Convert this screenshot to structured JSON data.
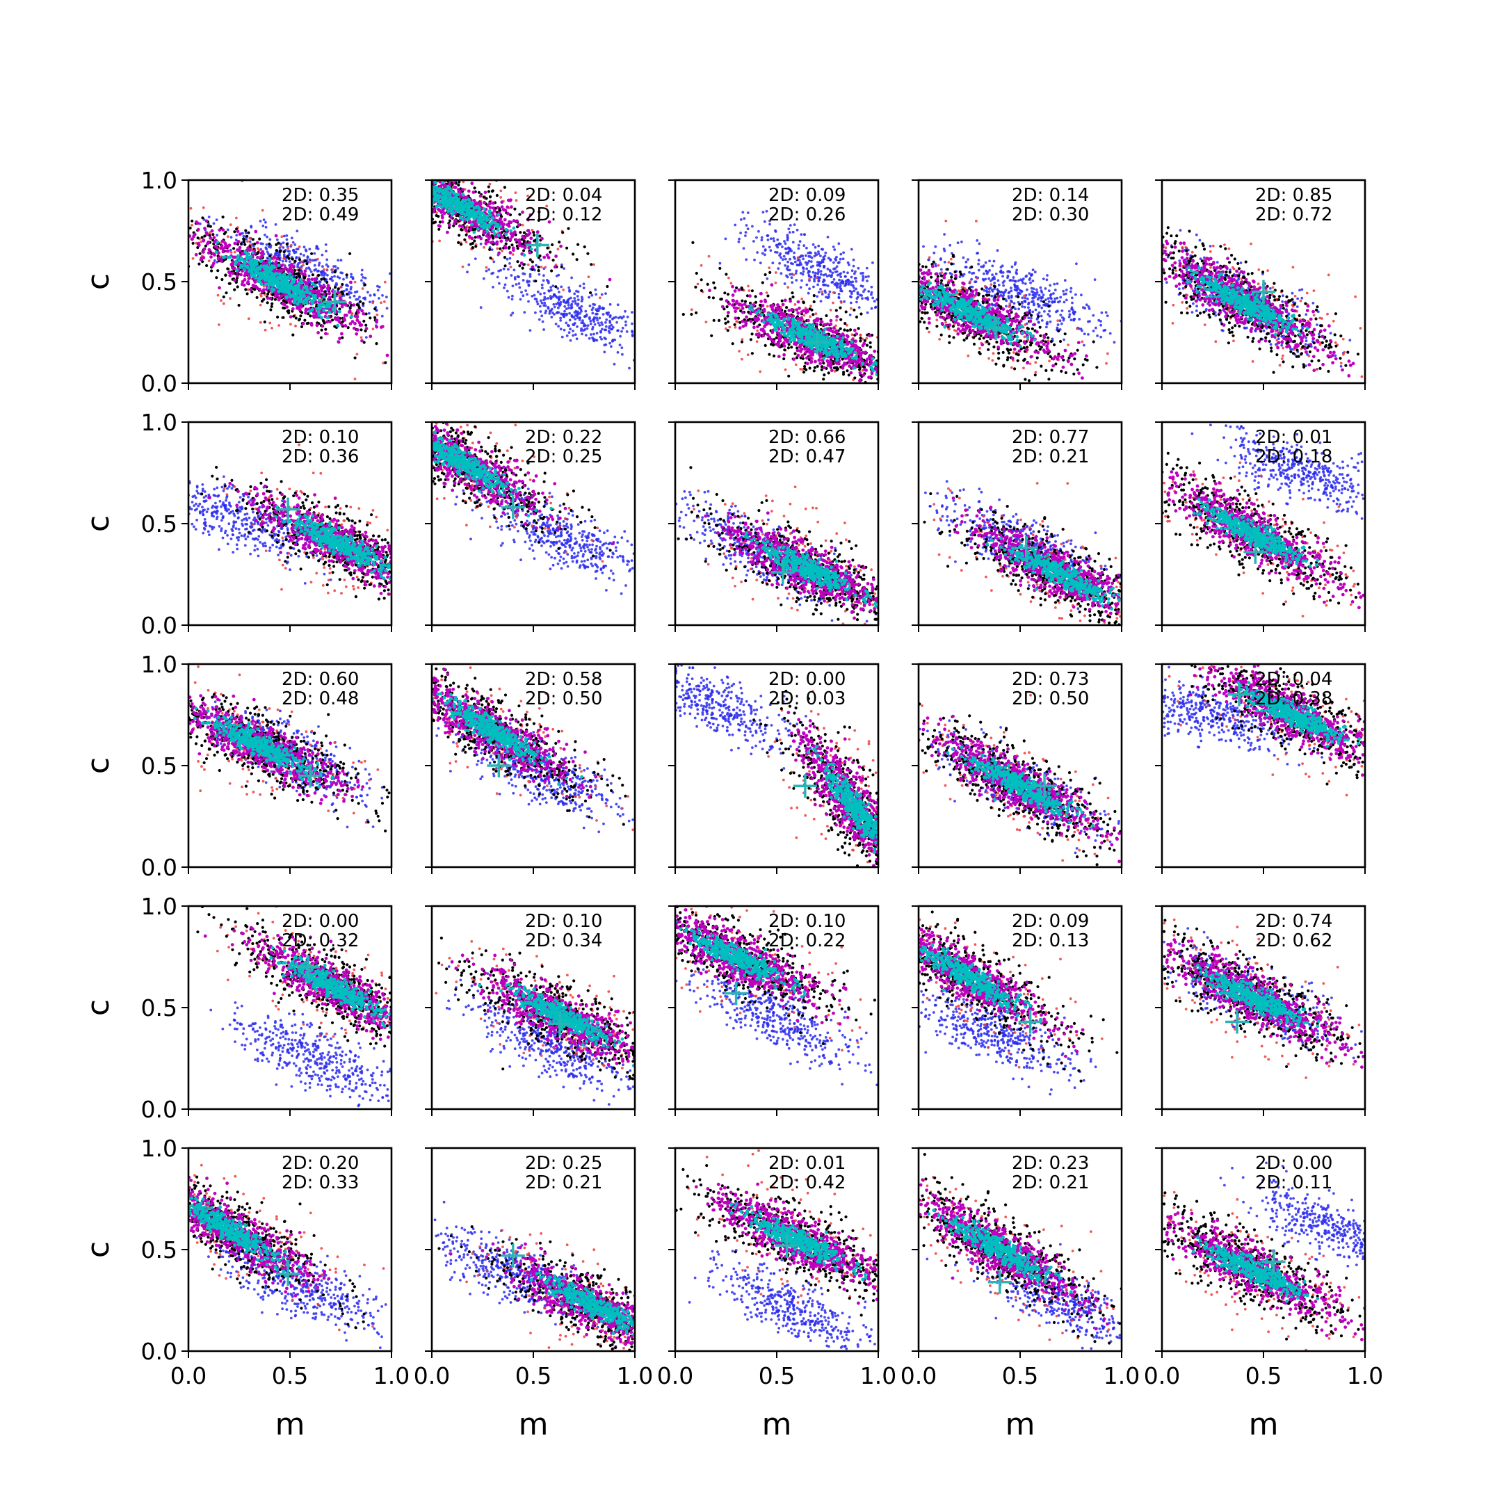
{
  "figure": {
    "rows": 5,
    "cols": 5
  },
  "chart_data": {
    "type": "scatter",
    "xlabel": "m",
    "ylabel": "c",
    "xlim": [
      0,
      1
    ],
    "ylim": [
      0,
      1
    ],
    "xticks": [
      "0.0",
      "0.5",
      "1.0"
    ],
    "yticks": [
      "0.0",
      "0.5",
      "1.0"
    ],
    "grid": false,
    "colors": {
      "blue": "#2a2af0",
      "red": "#ee3b3b",
      "black": "#000000",
      "magenta": "#bf00bf",
      "cyan": "#00bfbf",
      "marker": "#2ab5b5"
    },
    "panels": [
      {
        "annot": [
          "2D: 0.35",
          "2D: 0.49"
        ],
        "marker": [
          0.72,
          0.4
        ],
        "main": {
          "cx": 0.45,
          "cy": 0.5,
          "slope": -0.55
        },
        "blue": {
          "cx": 0.58,
          "cy": 0.55,
          "slope": -0.5
        }
      },
      {
        "annot": [
          "2D: 0.04",
          "2D: 0.12"
        ],
        "marker": [
          0.52,
          0.68
        ],
        "main": {
          "cx": 0.12,
          "cy": 0.88,
          "slope": -0.55
        },
        "blue": {
          "cx": 0.7,
          "cy": 0.35,
          "slope": -0.5
        }
      },
      {
        "annot": [
          "2D: 0.09",
          "2D: 0.26"
        ],
        "marker": [
          0.7,
          0.2
        ],
        "main": {
          "cx": 0.68,
          "cy": 0.22,
          "slope": -0.45
        },
        "blue": {
          "cx": 0.75,
          "cy": 0.55,
          "slope": -0.45
        }
      },
      {
        "annot": [
          "2D: 0.14",
          "2D: 0.30"
        ],
        "marker": [
          0.38,
          0.27
        ],
        "main": {
          "cx": 0.25,
          "cy": 0.35,
          "slope": -0.5
        },
        "blue": {
          "cx": 0.5,
          "cy": 0.44,
          "slope": -0.45
        }
      },
      {
        "annot": [
          "2D: 0.85",
          "2D: 0.72"
        ],
        "marker": [
          0.5,
          0.45
        ],
        "main": {
          "cx": 0.4,
          "cy": 0.4,
          "slope": -0.55
        },
        "blue": {
          "cx": 0.4,
          "cy": 0.4,
          "slope": -0.55
        }
      },
      {
        "annot": [
          "2D: 0.10",
          "2D: 0.36"
        ],
        "marker": [
          0.49,
          0.57
        ],
        "main": {
          "cx": 0.75,
          "cy": 0.4,
          "slope": -0.5
        },
        "blue": {
          "cx": 0.25,
          "cy": 0.52,
          "slope": -0.35
        }
      },
      {
        "annot": [
          "2D: 0.22",
          "2D: 0.25"
        ],
        "marker": [
          0.4,
          0.58
        ],
        "main": {
          "cx": 0.15,
          "cy": 0.8,
          "slope": -0.6
        },
        "blue": {
          "cx": 0.65,
          "cy": 0.42,
          "slope": -0.45
        }
      },
      {
        "annot": [
          "2D: 0.66",
          "2D: 0.47"
        ],
        "marker": [
          0.53,
          0.26
        ],
        "main": {
          "cx": 0.65,
          "cy": 0.28,
          "slope": -0.5
        },
        "blue": {
          "cx": 0.45,
          "cy": 0.35,
          "slope": -0.5
        }
      },
      {
        "annot": [
          "2D: 0.77",
          "2D: 0.21"
        ],
        "marker": [
          0.53,
          0.38
        ],
        "main": {
          "cx": 0.7,
          "cy": 0.25,
          "slope": -0.5
        },
        "blue": {
          "cx": 0.5,
          "cy": 0.4,
          "slope": -0.5
        }
      },
      {
        "annot": [
          "2D: 0.01",
          "2D: 0.18"
        ],
        "marker": [
          0.46,
          0.36
        ],
        "main": {
          "cx": 0.45,
          "cy": 0.45,
          "slope": -0.55
        },
        "blue": {
          "cx": 0.7,
          "cy": 0.75,
          "slope": -0.4
        }
      },
      {
        "annot": [
          "2D: 0.60",
          "2D: 0.48"
        ],
        "marker": [
          0.6,
          0.45
        ],
        "main": {
          "cx": 0.35,
          "cy": 0.6,
          "slope": -0.5
        },
        "blue": {
          "cx": 0.5,
          "cy": 0.55,
          "slope": -0.5
        }
      },
      {
        "annot": [
          "2D: 0.58",
          "2D: 0.50"
        ],
        "marker": [
          0.33,
          0.5
        ],
        "main": {
          "cx": 0.3,
          "cy": 0.67,
          "slope": -0.6
        },
        "blue": {
          "cx": 0.55,
          "cy": 0.45,
          "slope": -0.5
        }
      },
      {
        "annot": [
          "2D: 0.00",
          "2D: 0.03"
        ],
        "marker": [
          0.64,
          0.4
        ],
        "main": {
          "cx": 0.88,
          "cy": 0.3,
          "slope": -1.4
        },
        "blue": {
          "cx": 0.2,
          "cy": 0.8,
          "slope": -0.45
        }
      },
      {
        "annot": [
          "2D: 0.73",
          "2D: 0.50"
        ],
        "marker": [
          0.62,
          0.4
        ],
        "main": {
          "cx": 0.5,
          "cy": 0.4,
          "slope": -0.55
        },
        "blue": {
          "cx": 0.5,
          "cy": 0.4,
          "slope": -0.55
        }
      },
      {
        "annot": [
          "2D: 0.04",
          "2D: 0.38"
        ],
        "marker": [
          0.38,
          0.85
        ],
        "main": {
          "cx": 0.65,
          "cy": 0.75,
          "slope": -0.5
        },
        "blue": {
          "cx": 0.25,
          "cy": 0.75,
          "slope": -0.3
        }
      },
      {
        "annot": [
          "2D: 0.00",
          "2D: 0.32"
        ],
        "marker": [
          0.59,
          0.7
        ],
        "main": {
          "cx": 0.72,
          "cy": 0.6,
          "slope": -0.55
        },
        "blue": {
          "cx": 0.62,
          "cy": 0.25,
          "slope": -0.45
        }
      },
      {
        "annot": [
          "2D: 0.10",
          "2D: 0.34"
        ],
        "marker": [
          0.63,
          0.42
        ],
        "main": {
          "cx": 0.65,
          "cy": 0.45,
          "slope": -0.5
        },
        "blue": {
          "cx": 0.6,
          "cy": 0.3,
          "slope": -0.5
        }
      },
      {
        "annot": [
          "2D: 0.10",
          "2D: 0.22"
        ],
        "marker": [
          0.3,
          0.57
        ],
        "main": {
          "cx": 0.3,
          "cy": 0.75,
          "slope": -0.5
        },
        "blue": {
          "cx": 0.5,
          "cy": 0.45,
          "slope": -0.5
        }
      },
      {
        "annot": [
          "2D: 0.09",
          "2D: 0.13"
        ],
        "marker": [
          0.55,
          0.43
        ],
        "main": {
          "cx": 0.25,
          "cy": 0.65,
          "slope": -0.6
        },
        "blue": {
          "cx": 0.35,
          "cy": 0.38,
          "slope": -0.45
        }
      },
      {
        "annot": [
          "2D: 0.74",
          "2D: 0.62"
        ],
        "marker": [
          0.37,
          0.43
        ],
        "main": {
          "cx": 0.45,
          "cy": 0.55,
          "slope": -0.5
        },
        "blue": {
          "cx": 0.45,
          "cy": 0.55,
          "slope": -0.5
        }
      },
      {
        "annot": [
          "2D: 0.20",
          "2D: 0.33"
        ],
        "marker": [
          0.49,
          0.38
        ],
        "main": {
          "cx": 0.2,
          "cy": 0.6,
          "slope": -0.6
        },
        "blue": {
          "cx": 0.55,
          "cy": 0.32,
          "slope": -0.45
        }
      },
      {
        "annot": [
          "2D: 0.25",
          "2D: 0.21"
        ],
        "marker": [
          0.4,
          0.47
        ],
        "main": {
          "cx": 0.8,
          "cy": 0.22,
          "slope": -0.5
        },
        "blue": {
          "cx": 0.4,
          "cy": 0.38,
          "slope": -0.45
        }
      },
      {
        "annot": [
          "2D: 0.01",
          "2D: 0.42"
        ],
        "marker": [
          0.55,
          0.52
        ],
        "main": {
          "cx": 0.6,
          "cy": 0.55,
          "slope": -0.5
        },
        "blue": {
          "cx": 0.6,
          "cy": 0.2,
          "slope": -0.45
        }
      },
      {
        "annot": [
          "2D: 0.23",
          "2D: 0.21"
        ],
        "marker": [
          0.4,
          0.34
        ],
        "main": {
          "cx": 0.4,
          "cy": 0.5,
          "slope": -0.6
        },
        "blue": {
          "cx": 0.7,
          "cy": 0.25,
          "slope": -0.5
        }
      },
      {
        "annot": [
          "2D: 0.00",
          "2D: 0.11"
        ],
        "marker": [
          0.55,
          0.44
        ],
        "main": {
          "cx": 0.45,
          "cy": 0.4,
          "slope": -0.5
        },
        "blue": {
          "cx": 0.85,
          "cy": 0.6,
          "slope": -0.45
        }
      }
    ]
  }
}
